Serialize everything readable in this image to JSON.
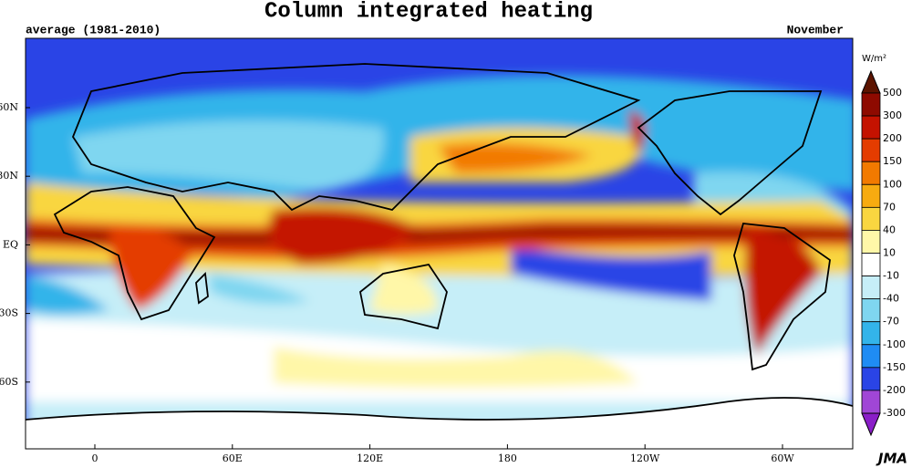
{
  "title": "Column integrated heating",
  "subtitle": "average (1981-2010)",
  "month": "November",
  "colorbar": {
    "unit": "W/m²",
    "levels": [
      500,
      300,
      200,
      150,
      100,
      70,
      40,
      10,
      -10,
      -40,
      -70,
      -100,
      -150,
      -200,
      -300
    ],
    "colors": [
      "#5c1400",
      "#8e0a00",
      "#c41200",
      "#e43c00",
      "#f27a00",
      "#f7ab10",
      "#f9d640",
      "#fff7a8",
      "#ffffff",
      "#c6eef8",
      "#7fd6f0",
      "#33b4ea",
      "#1f8cf4",
      "#2a44e6",
      "#a046d6",
      "#8a1ec8"
    ]
  },
  "lat_labels": [
    "60N",
    "30N",
    "EQ",
    "30S",
    "60S"
  ],
  "lon_labels": [
    "0",
    "60E",
    "120E",
    "180",
    "120W",
    "60W"
  ],
  "credit": "JMA"
}
